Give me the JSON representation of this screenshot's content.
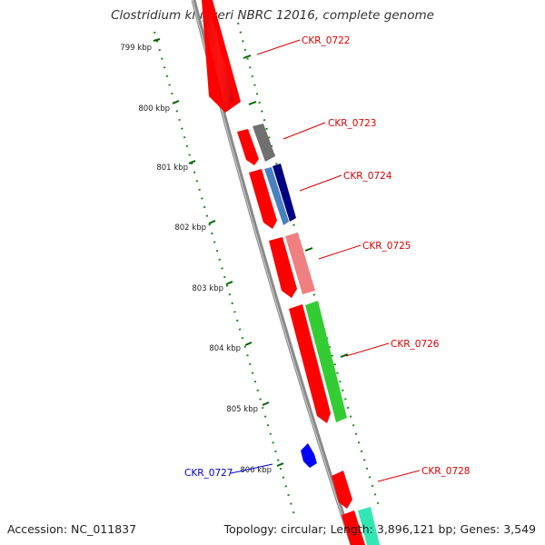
{
  "title": "Clostridium kluyveri NBRC 12016, complete genome",
  "footer": {
    "accession": "Accession: NC_011837",
    "summary": "Topology: circular; Length: 3,896,121 bp; Genes: 3,549"
  },
  "ticks": [
    "799 kbp",
    "800 kbp",
    "801 kbp",
    "802 kbp",
    "803 kbp",
    "804 kbp",
    "805 kbp",
    "806 kbp"
  ],
  "genes": [
    {
      "label": "CKR_0722",
      "color": "#dd0000"
    },
    {
      "label": "CKR_0723",
      "color": "#dd0000"
    },
    {
      "label": "CKR_0724",
      "color": "#dd0000"
    },
    {
      "label": "CKR_0725",
      "color": "#dd0000"
    },
    {
      "label": "CKR_0726",
      "color": "#dd0000"
    },
    {
      "label": "CKR_0727",
      "color": "#0000cc"
    },
    {
      "label": "CKR_0728",
      "color": "#dd0000"
    }
  ],
  "colors": {
    "strand_red": "#ff0000",
    "gray": "#666666",
    "light_blue": "#5b8fc4",
    "navy": "#000080",
    "pink": "#f08080",
    "green": "#33cc33",
    "blue": "#0000ff",
    "teal": "#33e6b3",
    "backbone": "#8a8a8a",
    "tick_green": "#006400"
  }
}
